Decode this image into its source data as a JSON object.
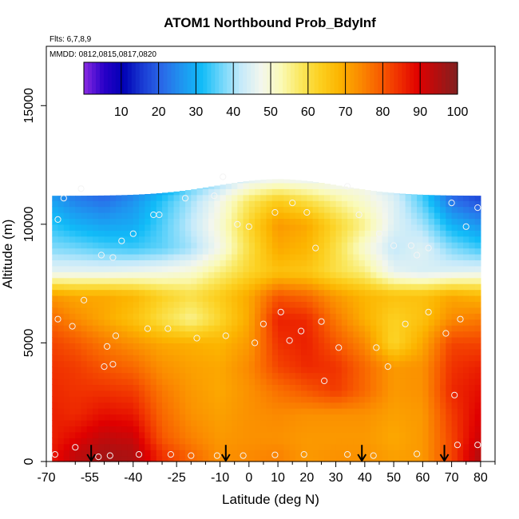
{
  "chart_data": {
    "type": "heatmap",
    "title": "ATOM1 Northbound Prob_BdyInf",
    "notes": [
      "Flts: 6,7,8,9",
      "MMDD: 0812,0815,0817,0820"
    ],
    "xlabel": "Latitude (deg N)",
    "ylabel": "Altitude (m)",
    "xlim": [
      -70,
      85
    ],
    "ylim": [
      0,
      17500
    ],
    "x_ticks": [
      -70,
      -55,
      -40,
      -25,
      -10,
      0,
      10,
      20,
      30,
      40,
      50,
      60,
      70,
      80
    ],
    "x_tick_labels": [
      "-70",
      "-55",
      "-40",
      "-25",
      "-10",
      "0",
      "10",
      "20",
      "30",
      "40",
      "50",
      "60",
      "70",
      "80"
    ],
    "x_minor_ticks": [
      -60,
      -50,
      -45,
      -35,
      -30,
      -20,
      -15,
      -5,
      5,
      15,
      25,
      35,
      45,
      55,
      65,
      75,
      85
    ],
    "y_ticks": [
      0,
      5000,
      10000,
      15000
    ],
    "y_tick_labels": [
      "0",
      "5000",
      "10000",
      "15000"
    ],
    "colorbar": {
      "range": [
        0,
        100
      ],
      "ticks": [
        10,
        20,
        30,
        40,
        50,
        60,
        70,
        80,
        90,
        100
      ],
      "tick_labels": [
        "10",
        "20",
        "30",
        "40",
        "50",
        "60",
        "70",
        "80",
        "90",
        "100"
      ],
      "colors": [
        "#8a2be2",
        "#2a00c8",
        "#0000b4",
        "#1a3cd4",
        "#2a6ae8",
        "#1e96f0",
        "#10bcf8",
        "#70d6fa",
        "#c6eafa",
        "#f2f6ee",
        "#fafab8",
        "#fae860",
        "#fcd020",
        "#fcb400",
        "#fb8c00",
        "#f86000",
        "#f03000",
        "#e00000",
        "#b01010",
        "#802020"
      ]
    },
    "grid": false,
    "legend": "none",
    "profile_markers_latitude": [
      -54.5,
      -8,
      39,
      67.5
    ],
    "layers": [
      {
        "alt": 300,
        "lat": [
          -68,
          -60,
          -50,
          -40,
          -30,
          -20,
          -10,
          0,
          10,
          20,
          30,
          40,
          50,
          60,
          70,
          80
        ],
        "values": [
          87,
          93,
          96,
          95,
          84,
          78,
          73,
          74,
          75,
          72,
          73,
          73,
          71,
          72,
          82,
          95
        ]
      },
      {
        "alt": 1000,
        "lat": [
          -68,
          -60,
          -50,
          -40,
          -30,
          -20,
          -10,
          0,
          10,
          20,
          30,
          40,
          50,
          60,
          70,
          80
        ],
        "values": [
          86,
          89,
          93,
          92,
          80,
          75,
          72,
          73,
          73,
          72,
          72,
          72,
          70,
          72,
          82,
          92
        ]
      },
      {
        "alt": 2000,
        "lat": [
          -68,
          -60,
          -50,
          -40,
          -30,
          -20,
          -10,
          0,
          10,
          20,
          30,
          40,
          50,
          60,
          70,
          80
        ],
        "values": [
          86,
          85,
          88,
          87,
          78,
          73,
          71,
          73,
          74,
          73,
          73,
          73,
          71,
          72,
          83,
          90
        ]
      },
      {
        "alt": 3000,
        "lat": [
          -68,
          -60,
          -50,
          -40,
          -30,
          -20,
          -10,
          0,
          10,
          20,
          30,
          40,
          50,
          60,
          70,
          80
        ],
        "values": [
          85,
          84,
          84,
          83,
          76,
          72,
          70,
          73,
          77,
          80,
          83,
          78,
          72,
          73,
          85,
          88
        ]
      },
      {
        "alt": 4000,
        "lat": [
          -68,
          -60,
          -50,
          -40,
          -30,
          -20,
          -10,
          0,
          10,
          20,
          30,
          40,
          50,
          60,
          70,
          80
        ],
        "values": [
          84,
          83,
          80,
          78,
          73,
          71,
          70,
          74,
          82,
          85,
          84,
          78,
          72,
          73,
          84,
          86
        ]
      },
      {
        "alt": 5000,
        "lat": [
          -68,
          -60,
          -50,
          -40,
          -30,
          -20,
          -10,
          0,
          10,
          20,
          30,
          40,
          50,
          60,
          70,
          80
        ],
        "values": [
          82,
          80,
          76,
          73,
          70,
          69,
          68,
          72,
          84,
          86,
          80,
          74,
          62,
          70,
          82,
          82
        ]
      },
      {
        "alt": 6000,
        "lat": [
          -68,
          -60,
          -50,
          -40,
          -30,
          -20,
          -10,
          0,
          10,
          20,
          30,
          40,
          50,
          60,
          70,
          80
        ],
        "values": [
          78,
          74,
          70,
          66,
          60,
          55,
          62,
          70,
          86,
          85,
          76,
          69,
          63,
          66,
          74,
          76
        ]
      },
      {
        "alt": 7000,
        "lat": [
          -68,
          -60,
          -50,
          -40,
          -30,
          -20,
          -10,
          0,
          10,
          20,
          30,
          40,
          50,
          60,
          70,
          80
        ],
        "values": [
          72,
          70,
          70,
          68,
          63,
          60,
          64,
          70,
          80,
          78,
          72,
          68,
          66,
          66,
          70,
          68
        ]
      },
      {
        "alt": 8000,
        "lat": [
          -68,
          -60,
          -50,
          -40,
          -30,
          -20,
          -10,
          0,
          10,
          20,
          30,
          40,
          50,
          60,
          70,
          80
        ],
        "values": [
          46,
          46,
          46,
          47,
          48,
          50,
          56,
          62,
          66,
          65,
          60,
          56,
          46,
          44,
          45,
          46
        ]
      },
      {
        "alt": 9000,
        "lat": [
          -68,
          -60,
          -50,
          -40,
          -30,
          -20,
          -10,
          0,
          10,
          20,
          30,
          40,
          50,
          60,
          70,
          80
        ],
        "values": [
          38,
          37,
          35,
          34,
          36,
          40,
          48,
          60,
          70,
          68,
          60,
          50,
          42,
          45,
          38,
          34
        ]
      },
      {
        "alt": 10000,
        "lat": [
          -68,
          -60,
          -50,
          -40,
          -30,
          -20,
          -10,
          0,
          10,
          20,
          30,
          40,
          50,
          60,
          70,
          80
        ],
        "values": [
          33,
          30,
          28,
          29,
          35,
          42,
          50,
          62,
          72,
          70,
          62,
          55,
          45,
          40,
          30,
          26
        ]
      },
      {
        "alt": 11000,
        "lat": [
          -68,
          -60,
          -50,
          -40,
          -30,
          -20,
          -10,
          0,
          10,
          20,
          30,
          40,
          50,
          60,
          70,
          80
        ],
        "values": [
          28,
          24,
          22,
          26,
          33,
          40,
          48,
          58,
          64,
          60,
          55,
          50,
          45,
          35,
          22,
          18
        ]
      },
      {
        "alt": 12000,
        "lat": [
          -60,
          -50,
          -40,
          -30,
          -20,
          -10,
          0,
          10,
          20,
          30,
          40,
          50,
          60,
          70,
          80
        ],
        "values": [
          20,
          16,
          18,
          24,
          34,
          38,
          44,
          46,
          45,
          44,
          46,
          40,
          32,
          18,
          14
        ]
      }
    ],
    "data_point_markers": [
      {
        "lat": -67,
        "alt": 300
      },
      {
        "lat": -60,
        "alt": 600
      },
      {
        "lat": -52,
        "alt": 200
      },
      {
        "lat": -48,
        "alt": 250
      },
      {
        "lat": -38,
        "alt": 300
      },
      {
        "lat": -27,
        "alt": 300
      },
      {
        "lat": -20,
        "alt": 250
      },
      {
        "lat": -11,
        "alt": 250
      },
      {
        "lat": -2,
        "alt": 250
      },
      {
        "lat": 9,
        "alt": 280
      },
      {
        "lat": 19,
        "alt": 300
      },
      {
        "lat": 34,
        "alt": 300
      },
      {
        "lat": 43,
        "alt": 250
      },
      {
        "lat": 58,
        "alt": 320
      },
      {
        "lat": 72,
        "alt": 700
      },
      {
        "lat": 79,
        "alt": 700
      },
      {
        "lat": -47,
        "alt": 4100
      },
      {
        "lat": -50,
        "alt": 4000
      },
      {
        "lat": -49,
        "alt": 4850
      },
      {
        "lat": -35,
        "alt": 5600
      },
      {
        "lat": -28,
        "alt": 5600
      },
      {
        "lat": -18,
        "alt": 5200
      },
      {
        "lat": -8,
        "alt": 5300
      },
      {
        "lat": 2,
        "alt": 5000
      },
      {
        "lat": 5,
        "alt": 5800
      },
      {
        "lat": 11,
        "alt": 6300
      },
      {
        "lat": 14,
        "alt": 5100
      },
      {
        "lat": 18,
        "alt": 5500
      },
      {
        "lat": 25,
        "alt": 5900
      },
      {
        "lat": 26,
        "alt": 3400
      },
      {
        "lat": 31,
        "alt": 4800
      },
      {
        "lat": 44,
        "alt": 4800
      },
      {
        "lat": 48,
        "alt": 4000
      },
      {
        "lat": 54,
        "alt": 5800
      },
      {
        "lat": 62,
        "alt": 6300
      },
      {
        "lat": 68,
        "alt": 5400
      },
      {
        "lat": 71,
        "alt": 2800
      },
      {
        "lat": 73,
        "alt": 6000
      },
      {
        "lat": -66,
        "alt": 6000
      },
      {
        "lat": -61,
        "alt": 5700
      },
      {
        "lat": -57,
        "alt": 6800
      },
      {
        "lat": -46,
        "alt": 5300
      },
      {
        "lat": -40,
        "alt": 9600
      },
      {
        "lat": -44,
        "alt": 9300
      },
      {
        "lat": -33,
        "alt": 10400
      },
      {
        "lat": -31,
        "alt": 10400
      },
      {
        "lat": -22,
        "alt": 11100
      },
      {
        "lat": -12,
        "alt": 11200
      },
      {
        "lat": -9,
        "alt": 12000
      },
      {
        "lat": -4,
        "alt": 10000
      },
      {
        "lat": 0,
        "alt": 9900
      },
      {
        "lat": 9,
        "alt": 10500
      },
      {
        "lat": 15,
        "alt": 10900
      },
      {
        "lat": 20,
        "alt": 10500
      },
      {
        "lat": 23,
        "alt": 9000
      },
      {
        "lat": 34,
        "alt": 11600
      },
      {
        "lat": 38,
        "alt": 10400
      },
      {
        "lat": 45,
        "alt": 9600
      },
      {
        "lat": 50,
        "alt": 9100
      },
      {
        "lat": 56,
        "alt": 9100
      },
      {
        "lat": 58,
        "alt": 8700
      },
      {
        "lat": 62,
        "alt": 9000
      },
      {
        "lat": 70,
        "alt": 10900
      },
      {
        "lat": 75,
        "alt": 9900
      },
      {
        "lat": 79,
        "alt": 10700
      },
      {
        "lat": -66,
        "alt": 10200
      },
      {
        "lat": -64,
        "alt": 11100
      },
      {
        "lat": -58,
        "alt": 11500
      },
      {
        "lat": -51,
        "alt": 8700
      },
      {
        "lat": -47,
        "alt": 8600
      }
    ]
  }
}
